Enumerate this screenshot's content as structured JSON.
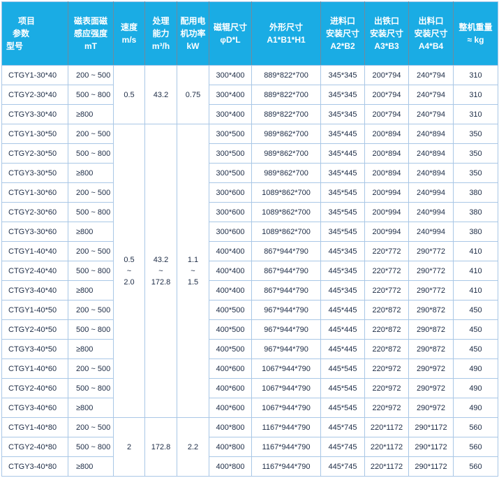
{
  "header": {
    "corner": {
      "line1": "项目",
      "line2": "参数",
      "line3": "型号"
    },
    "columns": [
      {
        "lines": [
          "磁表面磁",
          "感应强度",
          "mT"
        ]
      },
      {
        "lines": [
          "速度",
          "m/s"
        ]
      },
      {
        "lines": [
          "处理",
          "能力",
          "m³/h"
        ]
      },
      {
        "lines": [
          "配用电",
          "机功率",
          "kW"
        ]
      },
      {
        "lines": [
          "磁辊尺寸",
          "φD*L"
        ]
      },
      {
        "lines": [
          "外形尺寸",
          "A1*B1*H1"
        ]
      },
      {
        "lines": [
          "进料口",
          "安装尺寸",
          "A2*B2"
        ]
      },
      {
        "lines": [
          "出铁口",
          "安装尺寸",
          "A3*B3"
        ]
      },
      {
        "lines": [
          "出料口",
          "安装尺寸",
          "A4*B4"
        ]
      },
      {
        "lines": [
          "整机重量",
          "≈ kg"
        ]
      }
    ]
  },
  "merged_blocks": [
    {
      "start": 0,
      "span": 3,
      "speed": [
        "0.5"
      ],
      "capacity": [
        "43.2"
      ],
      "power": [
        "0.75"
      ]
    },
    {
      "start": 3,
      "span": 15,
      "speed": [
        "0.5",
        "~",
        "2.0"
      ],
      "capacity": [
        "43.2",
        "~",
        "172.8"
      ],
      "power": [
        "1.1",
        "~",
        "1.5"
      ]
    },
    {
      "start": 18,
      "span": 3,
      "speed": [
        "2"
      ],
      "capacity": [
        "172.8"
      ],
      "power": [
        "2.2"
      ]
    }
  ],
  "rows": [
    {
      "model": "CTGY1-30*40",
      "mt": "200 ~ 500",
      "roller": "300*400",
      "overall": "889*822*700",
      "feed": "345*345",
      "iron": "200*794",
      "discharge": "240*794",
      "weight": "310"
    },
    {
      "model": "CTGY2-30*40",
      "mt": "500 ~ 800",
      "roller": "300*400",
      "overall": "889*822*700",
      "feed": "345*345",
      "iron": "200*794",
      "discharge": "240*794",
      "weight": "310"
    },
    {
      "model": "CTGY3-30*40",
      "mt": "≥800",
      "roller": "300*400",
      "overall": "889*822*700",
      "feed": "345*345",
      "iron": "200*794",
      "discharge": "240*794",
      "weight": "310"
    },
    {
      "model": "CTGY1-30*50",
      "mt": "200 ~ 500",
      "roller": "300*500",
      "overall": "989*862*700",
      "feed": "345*445",
      "iron": "200*894",
      "discharge": "240*894",
      "weight": "350"
    },
    {
      "model": "CTGY2-30*50",
      "mt": "500 ~ 800",
      "roller": "300*500",
      "overall": "989*862*700",
      "feed": "345*445",
      "iron": "200*894",
      "discharge": "240*894",
      "weight": "350"
    },
    {
      "model": "CTGY3-30*50",
      "mt": "≥800",
      "roller": "300*500",
      "overall": "989*862*700",
      "feed": "345*445",
      "iron": "200*894",
      "discharge": "240*894",
      "weight": "350"
    },
    {
      "model": "CTGY1-30*60",
      "mt": "200 ~ 500",
      "roller": "300*600",
      "overall": "1089*862*700",
      "feed": "345*545",
      "iron": "200*994",
      "discharge": "240*994",
      "weight": "380"
    },
    {
      "model": "CTGY2-30*60",
      "mt": "500 ~ 800",
      "roller": "300*600",
      "overall": "1089*862*700",
      "feed": "345*545",
      "iron": "200*994",
      "discharge": "240*994",
      "weight": "380"
    },
    {
      "model": "CTGY3-30*60",
      "mt": "≥800",
      "roller": "300*600",
      "overall": "1089*862*700",
      "feed": "345*545",
      "iron": "200*994",
      "discharge": "240*994",
      "weight": "380"
    },
    {
      "model": "CTGY1-40*40",
      "mt": "200 ~ 500",
      "roller": "400*400",
      "overall": "867*944*790",
      "feed": "445*345",
      "iron": "220*772",
      "discharge": "290*772",
      "weight": "410"
    },
    {
      "model": "CTGY2-40*40",
      "mt": "500 ~ 800",
      "roller": "400*400",
      "overall": "867*944*790",
      "feed": "445*345",
      "iron": "220*772",
      "discharge": "290*772",
      "weight": "410"
    },
    {
      "model": "CTGY3-40*40",
      "mt": "≥800",
      "roller": "400*400",
      "overall": "867*944*790",
      "feed": "445*345",
      "iron": "220*772",
      "discharge": "290*772",
      "weight": "410"
    },
    {
      "model": "CTGY1-40*50",
      "mt": "200 ~ 500",
      "roller": "400*500",
      "overall": "967*944*790",
      "feed": "445*445",
      "iron": "220*872",
      "discharge": "290*872",
      "weight": "450"
    },
    {
      "model": "CTGY2-40*50",
      "mt": "500 ~ 800",
      "roller": "400*500",
      "overall": "967*944*790",
      "feed": "445*445",
      "iron": "220*872",
      "discharge": "290*872",
      "weight": "450"
    },
    {
      "model": "CTGY3-40*50",
      "mt": "≥800",
      "roller": "400*500",
      "overall": "967*944*790",
      "feed": "445*445",
      "iron": "220*872",
      "discharge": "290*872",
      "weight": "450"
    },
    {
      "model": "CTGY1-40*60",
      "mt": "200 ~ 500",
      "roller": "400*600",
      "overall": "1067*944*790",
      "feed": "445*545",
      "iron": "220*972",
      "discharge": "290*972",
      "weight": "490"
    },
    {
      "model": "CTGY2-40*60",
      "mt": "500 ~ 800",
      "roller": "400*600",
      "overall": "1067*944*790",
      "feed": "445*545",
      "iron": "220*972",
      "discharge": "290*972",
      "weight": "490"
    },
    {
      "model": "CTGY3-40*60",
      "mt": "≥800",
      "roller": "400*600",
      "overall": "1067*944*790",
      "feed": "445*545",
      "iron": "220*972",
      "discharge": "290*972",
      "weight": "490"
    },
    {
      "model": "CTGY1-40*80",
      "mt": "200 ~ 500",
      "roller": "400*800",
      "overall": "1167*944*790",
      "feed": "445*745",
      "iron": "220*1172",
      "discharge": "290*1172",
      "weight": "560"
    },
    {
      "model": "CTGY2-40*80",
      "mt": "500 ~ 800",
      "roller": "400*800",
      "overall": "1167*944*790",
      "feed": "445*745",
      "iron": "220*1172",
      "discharge": "290*1172",
      "weight": "560"
    },
    {
      "model": "CTGY3-40*80",
      "mt": "≥800",
      "roller": "400*800",
      "overall": "1167*944*790",
      "feed": "445*745",
      "iron": "220*1172",
      "discharge": "290*1172",
      "weight": "560"
    }
  ]
}
